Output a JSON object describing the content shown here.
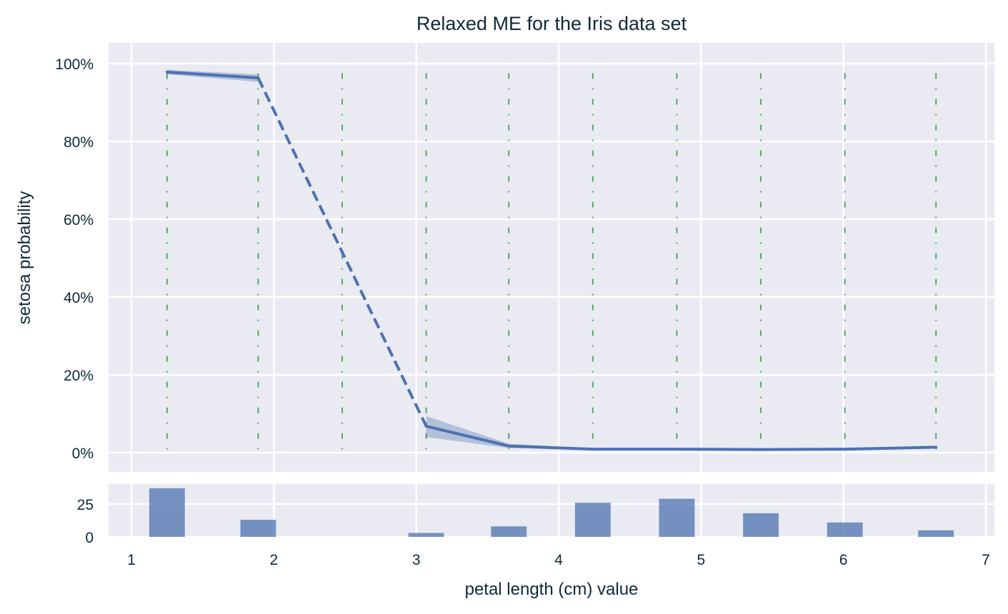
{
  "chart_data": [
    {
      "type": "line",
      "title": "Relaxed ME for the Iris data set",
      "xlabel": "petal length (cm) value",
      "ylabel": "setosa probability",
      "xlim": [
        0.84,
        7.06
      ],
      "ylim": [
        -5,
        105
      ],
      "xticks": [
        1,
        2,
        3,
        4,
        5,
        6,
        7
      ],
      "yticks": [
        0,
        20,
        40,
        60,
        80,
        100
      ],
      "ytick_labels": [
        "0%",
        "20%",
        "40%",
        "60%",
        "80%",
        "100%"
      ],
      "grid": true,
      "series": [
        {
          "name": "setosa probability",
          "color": "#4c72b0",
          "x": [
            1.25,
            1.89,
            3.07,
            3.65,
            4.24,
            4.83,
            5.42,
            6.01,
            6.65
          ],
          "y": [
            97.8,
            96.3,
            6.8,
            1.7,
            0.9,
            0.9,
            0.8,
            0.9,
            1.4
          ],
          "ci_lower": [
            97.2,
            95.3,
            4.0,
            1.2,
            0.7,
            0.7,
            0.6,
            0.7,
            1.1
          ],
          "ci_upper": [
            98.4,
            97.2,
            9.4,
            2.3,
            1.1,
            1.1,
            1.0,
            1.1,
            1.7
          ],
          "dashed_segments": [
            [
              1.89,
              3.07
            ]
          ]
        }
      ],
      "vertical_markers": {
        "color": "#55a868",
        "style": "dashdot",
        "x": [
          1.25,
          1.89,
          2.48,
          3.07,
          3.65,
          4.24,
          4.83,
          5.42,
          6.01,
          6.65
        ],
        "y_top": 97.5
      }
    },
    {
      "type": "bar",
      "title": "",
      "xlabel": "petal length (cm) value",
      "ylabel": "",
      "ylim": [
        0,
        40
      ],
      "yticks": [
        0,
        25
      ],
      "categories": [
        "1.25",
        "1.89",
        "2.48",
        "3.07",
        "3.65",
        "4.24",
        "4.83",
        "5.42",
        "6.01",
        "6.65"
      ],
      "x": [
        1.25,
        1.89,
        2.48,
        3.07,
        3.65,
        4.24,
        4.83,
        5.42,
        6.01,
        6.65
      ],
      "values": [
        37,
        13,
        0,
        3,
        8,
        26,
        29,
        18,
        11,
        5
      ],
      "bar_width": 0.25,
      "color": "#4c72b0",
      "grid": true
    }
  ],
  "labels": {
    "title": "Relaxed ME for the Iris data set",
    "xlabel": "petal length (cm) value",
    "ylabel": "setosa probability"
  }
}
